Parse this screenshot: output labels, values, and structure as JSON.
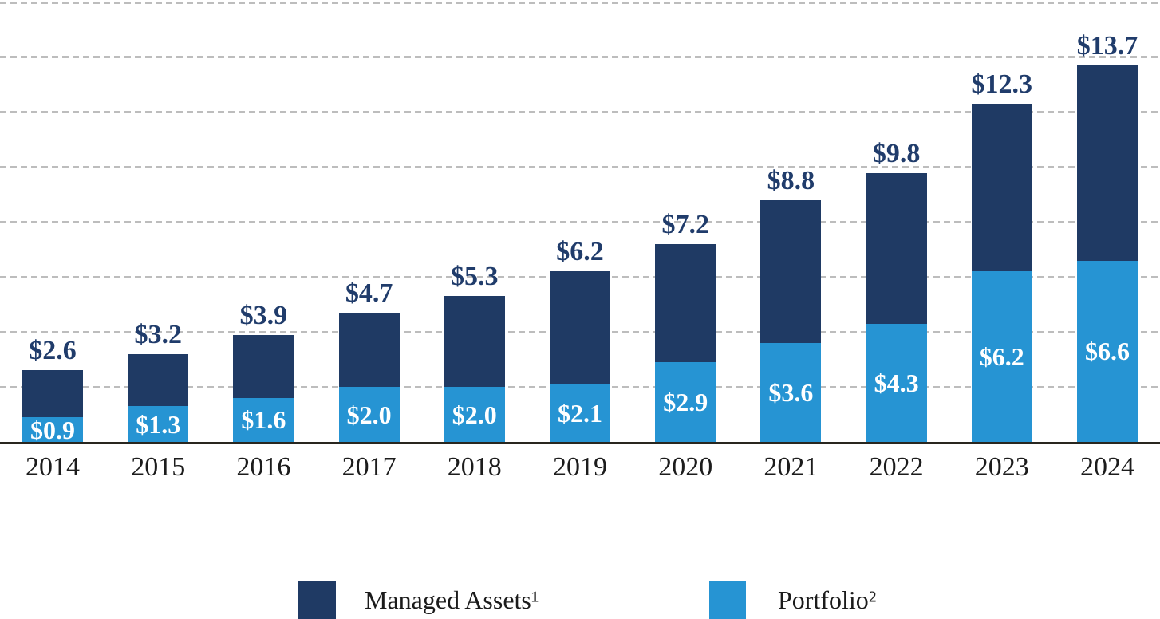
{
  "chart_data": {
    "type": "bar",
    "stacked": true,
    "categories": [
      "2014",
      "2015",
      "2016",
      "2017",
      "2018",
      "2019",
      "2020",
      "2021",
      "2022",
      "2023",
      "2024"
    ],
    "series": [
      {
        "name": "Managed Assets¹",
        "role": "total-bar-height",
        "color": "#1f3a64",
        "values": [
          2.6,
          3.2,
          3.9,
          4.7,
          5.3,
          6.2,
          7.2,
          8.8,
          9.8,
          12.3,
          13.7
        ]
      },
      {
        "name": "Portfolio²",
        "role": "lower-segment",
        "color": "#2694d3",
        "values": [
          0.9,
          1.3,
          1.6,
          2.0,
          2.0,
          2.1,
          2.9,
          3.6,
          4.3,
          6.2,
          6.6
        ]
      }
    ],
    "total_labels": [
      "$2.6",
      "$3.2",
      "$3.9",
      "$4.7",
      "$5.3",
      "$6.2",
      "$7.2",
      "$8.8",
      "$9.8",
      "$12.3",
      "$13.7"
    ],
    "portfolio_labels": [
      "$0.9",
      "$1.3",
      "$1.6",
      "$2.0",
      "$2.0",
      "$2.1",
      "$2.9",
      "$3.6",
      "$4.3",
      "$6.2",
      "$6.6"
    ],
    "ylim": [
      0,
      16
    ],
    "gridline_values": [
      2,
      4,
      6,
      8,
      10,
      12,
      14,
      16
    ],
    "grid_style": "dashed-horizontal",
    "legend_position": "bottom"
  },
  "legend": {
    "items": [
      {
        "label": "Managed Assets¹",
        "color": "#1f3a64"
      },
      {
        "label": "Portfolio²",
        "color": "#2694d3"
      }
    ]
  },
  "colors": {
    "bar_navy": "#1f3a64",
    "bar_blue": "#2694d3",
    "total_label_text": "#203c6b",
    "inner_label_text": "#ffffff",
    "axis_line": "#29261f",
    "gridline": "#bdbdbd",
    "tick_text": "#1c1c1c",
    "background": "#ffffff"
  }
}
